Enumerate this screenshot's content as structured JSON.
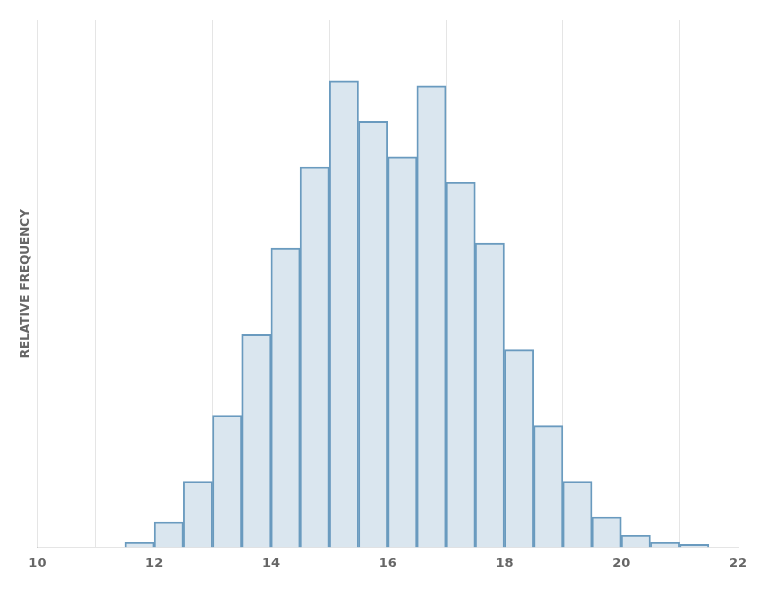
{
  "chart_data": {
    "type": "histogram",
    "bins": [
      11.5,
      12.0,
      12.5,
      13.0,
      13.5,
      14.0,
      14.5,
      15.0,
      15.5,
      16.0,
      16.5,
      17.0,
      17.5,
      18.0,
      18.5,
      19.0,
      19.5,
      20.0,
      20.5,
      21.0,
      21.5
    ],
    "values": [
      0.005,
      0.025,
      0.065,
      0.13,
      0.21,
      0.295,
      0.375,
      0.46,
      0.42,
      0.385,
      0.455,
      0.36,
      0.3,
      0.195,
      0.12,
      0.065,
      0.03,
      0.012,
      0.005,
      0.003
    ],
    "color": "#6a9bbf",
    "ylabel": "RELATIVE FREQUENCY",
    "xlim": [
      10,
      22
    ],
    "xticks": [
      10,
      12,
      14,
      16,
      18,
      20,
      22
    ],
    "ylim": [
      0,
      0.52
    ],
    "grid": "x",
    "tick_labels": "x"
  }
}
